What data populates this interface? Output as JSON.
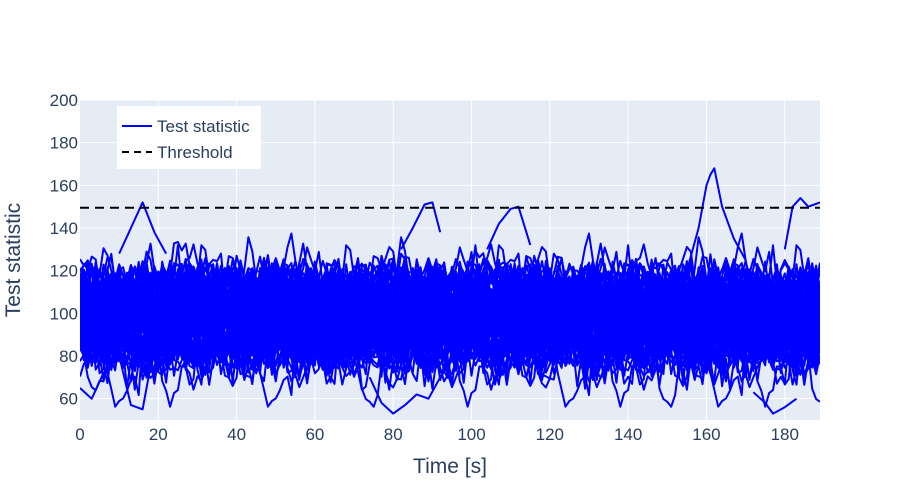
{
  "chart_data": {
    "type": "line",
    "title": "",
    "xlabel": "Time [s]",
    "ylabel": "Test statistic",
    "xlim": [
      0,
      189
    ],
    "ylim": [
      50,
      200
    ],
    "x_ticks": [
      0,
      20,
      40,
      60,
      80,
      100,
      120,
      140,
      160,
      180
    ],
    "y_ticks": [
      60,
      80,
      100,
      120,
      140,
      160,
      180,
      200
    ],
    "grid": true,
    "legend_position": "top-left",
    "legend": [
      {
        "label": "Test statistic",
        "style": "solid",
        "color": "#0000ff"
      },
      {
        "label": "Threshold",
        "style": "dashed",
        "color": "#000000"
      }
    ],
    "threshold": 149.5,
    "series_summary": {
      "name": "Test statistic",
      "color": "#0000ff",
      "trace_count": 100,
      "x_step": 1,
      "mean": 100,
      "typical_range": [
        65,
        135
      ],
      "observed_min": 53,
      "observed_max": 168
    },
    "highlighted_excursions": [
      {
        "x": [
          0,
          3,
          6,
          10,
          13,
          16,
          18,
          20
        ],
        "y": [
          65,
          60,
          72,
          80,
          57,
          55,
          75,
          85
        ]
      },
      {
        "x": [
          10,
          13,
          16,
          19,
          22
        ],
        "y": [
          128,
          140,
          152,
          138,
          128
        ]
      },
      {
        "x": [
          74,
          77,
          80,
          83,
          86,
          89,
          92,
          95
        ],
        "y": [
          70,
          58,
          53,
          57,
          62,
          60,
          70,
          78
        ]
      },
      {
        "x": [
          82,
          85,
          88,
          90,
          92
        ],
        "y": [
          130,
          140,
          151,
          152,
          138
        ]
      },
      {
        "x": [
          104,
          107,
          110,
          112,
          115
        ],
        "y": [
          130,
          142,
          149,
          150,
          132
        ]
      },
      {
        "x": [
          155,
          158,
          160,
          161,
          162,
          164,
          167,
          170
        ],
        "y": [
          120,
          140,
          160,
          165,
          168,
          150,
          135,
          125
        ]
      },
      {
        "x": [
          172,
          175,
          177,
          180,
          183
        ],
        "y": [
          63,
          58,
          53,
          56,
          60
        ]
      },
      {
        "x": [
          180,
          182,
          184,
          186,
          189
        ],
        "y": [
          130,
          150,
          154,
          150,
          152
        ]
      }
    ],
    "background_color": "#e5ecf6",
    "grid_color": "#ffffff"
  }
}
